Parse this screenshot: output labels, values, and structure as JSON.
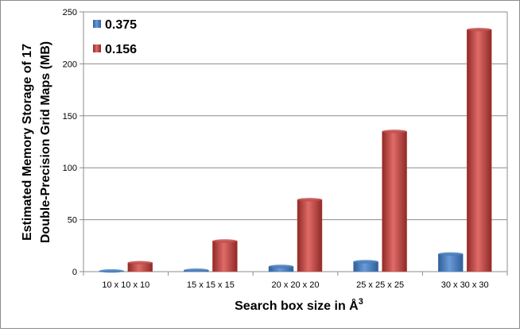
{
  "chart_data": {
    "type": "bar",
    "categories": [
      "10 x 10 x 10",
      "15 x 15 x 15",
      "20 x 20 x 20",
      "25 x 25 x 25",
      "30 x 30 x 30"
    ],
    "series": [
      {
        "name": "0.375",
        "values": [
          0.1,
          1.4,
          5.0,
          9.6,
          17.0
        ],
        "color": "#4a7ebb"
      },
      {
        "name": "0.156",
        "values": [
          8.6,
          29.5,
          69.3,
          135.0,
          233.0
        ],
        "color": "#c0504d"
      }
    ],
    "ylim": [
      0,
      250
    ],
    "yticks": [
      0,
      50,
      100,
      150,
      200,
      250
    ],
    "xlabel": "Search box size in Å",
    "xlabel_superscript": "3",
    "ylabel_line1": "Estimated Memory Storage of 17",
    "ylabel_line2": "Double-Precision  Grid Maps (MB)",
    "grid": true,
    "legend": "top-left"
  }
}
